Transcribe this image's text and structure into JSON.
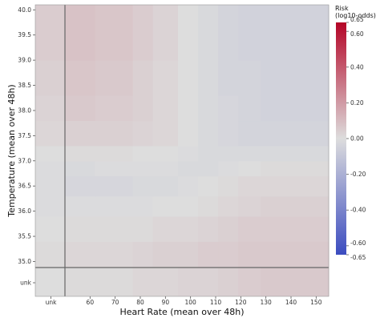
{
  "chart_data": {
    "type": "heatmap",
    "xlabel": "Heart Rate (mean over 48h)",
    "ylabel": "Temperature (mean over 48h)",
    "x_unknown_label": "unk",
    "y_unknown_label": "unk",
    "x_ticks": [
      60,
      70,
      80,
      90,
      100,
      110,
      120,
      130,
      140,
      150
    ],
    "x_tick_labels": [
      "60",
      "70",
      "80",
      "90",
      "100",
      "110",
      "120",
      "130",
      "140",
      "150"
    ],
    "y_ticks": [
      35.0,
      35.5,
      36.0,
      36.5,
      37.0,
      37.5,
      38.0,
      38.5,
      39.0,
      39.5,
      40.0
    ],
    "y_tick_labels": [
      "35.0",
      "35.5",
      "36.0",
      "36.5",
      "37.0",
      "37.5",
      "38.0",
      "38.5",
      "39.0",
      "39.5",
      "40.0"
    ],
    "xlim": [
      50,
      155
    ],
    "ylim": [
      34.88,
      40.1
    ],
    "x_bins": [
      50,
      62,
      77,
      85,
      95,
      103,
      111,
      119,
      128,
      155
    ],
    "y_bins": [
      34.88,
      35.4,
      35.9,
      36.3,
      36.7,
      37.0,
      37.3,
      37.8,
      38.3,
      39.0,
      40.1
    ],
    "z": [
      [
        0.02,
        0.02,
        0.03,
        0.04,
        0.04,
        0.05,
        0.05,
        0.06,
        0.06
      ],
      [
        0.01,
        0.01,
        0.01,
        0.02,
        0.02,
        0.03,
        0.04,
        0.05,
        0.05
      ],
      [
        -0.01,
        -0.01,
        -0.01,
        0.0,
        0.0,
        0.01,
        0.02,
        0.03,
        0.04
      ],
      [
        -0.03,
        -0.03,
        -0.02,
        -0.02,
        -0.01,
        0.0,
        0.01,
        0.02,
        0.02
      ],
      [
        -0.02,
        -0.01,
        -0.01,
        -0.01,
        -0.02,
        -0.02,
        -0.01,
        0.0,
        0.01
      ],
      [
        0.01,
        0.01,
        0.0,
        0.0,
        -0.01,
        -0.02,
        -0.02,
        -0.02,
        -0.02
      ],
      [
        0.04,
        0.04,
        0.03,
        0.02,
        0.0,
        -0.02,
        -0.03,
        -0.04,
        -0.04
      ],
      [
        0.06,
        0.05,
        0.04,
        0.02,
        0.0,
        -0.02,
        -0.03,
        -0.04,
        -0.05
      ],
      [
        0.07,
        0.06,
        0.04,
        0.02,
        0.0,
        -0.02,
        -0.04,
        -0.04,
        -0.05
      ],
      [
        0.08,
        0.07,
        0.05,
        0.03,
        0.0,
        -0.02,
        -0.04,
        -0.05,
        -0.05
      ]
    ],
    "unknown_x_column": [
      0.01,
      0.0,
      -0.01,
      -0.01,
      -0.01,
      0.0,
      0.02,
      0.03,
      0.04,
      0.05
    ],
    "unknown_y_row": [
      0.01,
      0.01,
      0.02,
      0.02,
      0.03,
      0.03,
      0.04,
      0.05,
      0.06
    ],
    "unknown_corner": 0.0,
    "crosshair": {
      "x": "unk",
      "y": "unk"
    },
    "colorbar": {
      "title_line1": "Risk",
      "title_line2": "(log10-odds)",
      "range": [
        -0.65,
        0.65
      ],
      "ticks": [
        0.65,
        0.6,
        0.4,
        0.2,
        0.0,
        -0.2,
        -0.4,
        -0.6,
        -0.65
      ],
      "tick_labels": [
        "0.65",
        "0.60",
        "0.40",
        "0.20",
        "0.00",
        "-0.20",
        "-0.40",
        "-0.60",
        "-0.65"
      ],
      "colormap": "coolwarm",
      "color_low": "#3b4cc0",
      "color_mid": "#dddddd",
      "color_high": "#b40426"
    }
  }
}
